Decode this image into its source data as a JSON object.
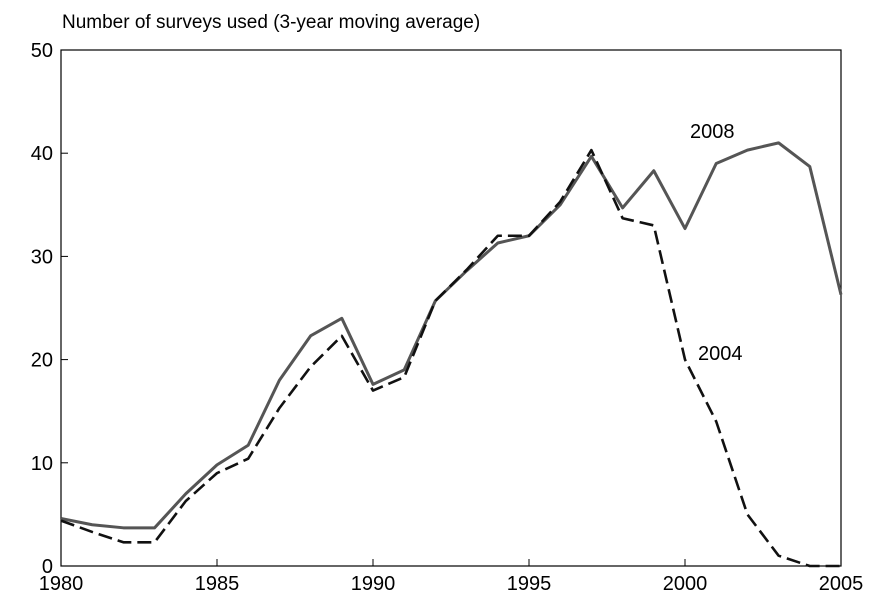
{
  "chart_data": {
    "type": "line",
    "title": "Number of surveys used (3-year moving average)",
    "x": [
      1980,
      1981,
      1982,
      1983,
      1984,
      1985,
      1986,
      1987,
      1988,
      1989,
      1990,
      1991,
      1992,
      1993,
      1994,
      1995,
      1996,
      1997,
      1998,
      1999,
      2000,
      2001,
      2002,
      2003,
      2004,
      2005
    ],
    "series": [
      {
        "name": "2008",
        "color": "#555555",
        "dash": "solid",
        "values": [
          4.6,
          4.0,
          3.7,
          3.7,
          7.0,
          9.8,
          11.7,
          18.0,
          22.3,
          24.0,
          17.6,
          19.0,
          25.7,
          28.6,
          31.3,
          32.0,
          35.0,
          39.7,
          34.7,
          38.3,
          32.7,
          39.0,
          40.3,
          41.0,
          38.7,
          26.3
        ]
      },
      {
        "name": "2004",
        "color": "#111111",
        "dash": "dashed",
        "values": [
          4.4,
          3.3,
          2.3,
          2.3,
          6.3,
          9.0,
          10.4,
          15.3,
          19.3,
          22.3,
          17.0,
          18.3,
          25.7,
          28.7,
          32.0,
          32.0,
          35.3,
          40.3,
          33.7,
          33.0,
          20.0,
          14.0,
          5.0,
          1.0,
          0.0,
          0.0
        ]
      }
    ],
    "xlim": [
      1980,
      2005
    ],
    "xticks": [
      1980,
      1985,
      1990,
      1995,
      2000,
      2005
    ],
    "ylim": [
      0,
      50
    ],
    "yticks": [
      0,
      10,
      20,
      30,
      40,
      50
    ],
    "grid": false
  }
}
